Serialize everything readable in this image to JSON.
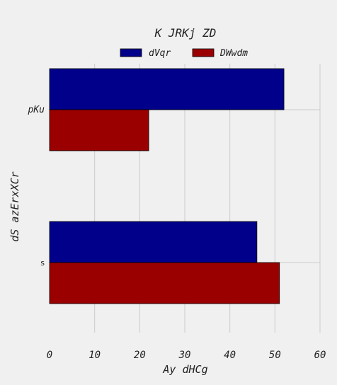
{
  "chart_data": {
    "type": "bar",
    "orientation": "horizontal",
    "title": "K JRKj ZD",
    "xlabel": "Ay dHCg",
    "ylabel": "dS azErxXCr",
    "categories": [
      "pKu",
      "s"
    ],
    "series": [
      {
        "name": "dVqr",
        "color": "#00008b",
        "values": [
          52,
          46
        ]
      },
      {
        "name": "DWwdm",
        "color": "#9b0000",
        "values": [
          22,
          51
        ]
      }
    ],
    "xlim": [
      0,
      60
    ],
    "xticks": [
      0,
      10,
      20,
      30,
      40,
      50,
      60
    ],
    "grid": true,
    "legend_position": "top-center"
  }
}
